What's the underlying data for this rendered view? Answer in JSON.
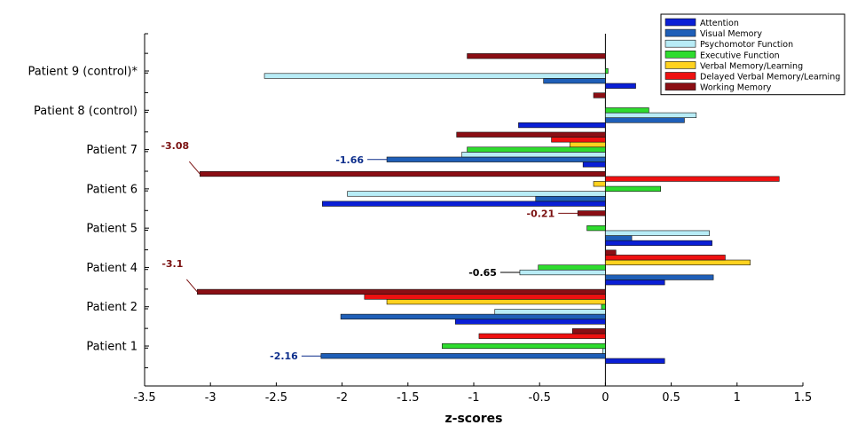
{
  "chart_data": {
    "type": "bar",
    "orientation": "horizontal",
    "xlabel": "z-scores",
    "ylabel": "",
    "title": "",
    "xlim": [
      -3.5,
      1.5
    ],
    "xticks": [
      -3.5,
      -3,
      -2.5,
      -2,
      -1.5,
      -1,
      -0.5,
      0,
      0.5,
      1,
      1.5
    ],
    "grid": false,
    "legend_position": "top-right",
    "categories": [
      "Patient 1",
      "Patient 2",
      "Patient 4",
      "Patient 5",
      "Patient 6",
      "Patient 7",
      "Patient 8 (control)",
      "Patient 9 (control)*"
    ],
    "series": [
      {
        "name": "Attention",
        "color": "#0a1fd6",
        "values": [
          0.45,
          -1.14,
          0.45,
          0.81,
          -2.15,
          -0.17,
          -0.66,
          0.23
        ]
      },
      {
        "name": "Visual Memory",
        "color": "#1f5fb8",
        "values": [
          -2.16,
          -2.01,
          0.82,
          0.2,
          -0.53,
          -1.66,
          0.6,
          -0.47
        ]
      },
      {
        "name": "Psychomotor Function",
        "color": "#b8ecf6",
        "values": [
          -0.02,
          -0.84,
          -0.65,
          0.79,
          -1.96,
          -1.09,
          0.69,
          -2.59
        ]
      },
      {
        "name": "Executive Function",
        "color": "#2edc2e",
        "values": [
          -1.24,
          -0.03,
          -0.51,
          -0.14,
          0.42,
          -1.05,
          0.33,
          0.02
        ]
      },
      {
        "name": "Verbal Memory/Learning",
        "color": "#ffd21f",
        "values": [
          0.0,
          -1.66,
          1.1,
          0.0,
          -0.09,
          -0.27,
          0.0,
          0.0
        ]
      },
      {
        "name": "Delayed Verbal Memory/Learning",
        "color": "#ee1111",
        "values": [
          -0.96,
          -1.83,
          0.91,
          0.0,
          1.32,
          -0.41,
          0.0,
          0.0
        ]
      },
      {
        "name": "Working Memory",
        "color": "#8b0e14",
        "values": [
          -0.25,
          -3.1,
          0.08,
          -0.21,
          -3.08,
          -1.13,
          -0.09,
          -1.05
        ]
      }
    ],
    "annotations": [
      {
        "text": "-2.16",
        "category": "Patient 1",
        "series": "Visual Memory",
        "color": "#0e2f8c"
      },
      {
        "text": "-3.1",
        "category": "Patient 2",
        "series": "Working Memory",
        "color": "#7a1010"
      },
      {
        "text": "-0.65",
        "category": "Patient 4",
        "series": "Psychomotor Function",
        "color": "#000000"
      },
      {
        "text": "-0.21",
        "category": "Patient 5",
        "series": "Working Memory",
        "color": "#7a1010"
      },
      {
        "text": "-3.08",
        "category": "Patient 6",
        "series": "Working Memory",
        "color": "#7a1010"
      },
      {
        "text": "-1.66",
        "category": "Patient 7",
        "series": "Visual Memory",
        "color": "#0e2f8c"
      }
    ]
  }
}
